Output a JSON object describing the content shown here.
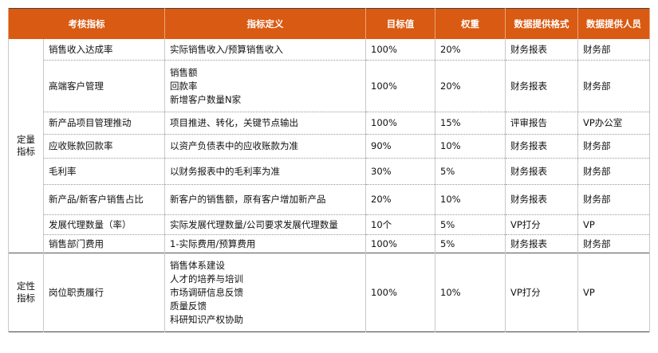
{
  "headers": [
    "考核指标",
    "指标定义",
    "目标值",
    "权重",
    "数据提供格式",
    "数据提供人员"
  ],
  "groups": [
    {
      "label_lines": [
        "定量",
        "指标"
      ],
      "rows": [
        {
          "name": "销售收入达成率",
          "def": [
            "实际销售收入/预算销售收入"
          ],
          "target": "100%",
          "weight": "20%",
          "format": "财务报表",
          "provider": "财务部"
        },
        {
          "name": "高端客户管理",
          "def": [
            "销售额",
            "回款率",
            "新增客户数量N家"
          ],
          "target": "100%",
          "weight": "20%",
          "format": "财务报表",
          "provider": "财务部"
        },
        {
          "name": "新产品项目管理推动",
          "def": [
            "项目推进、转化，关键节点输出"
          ],
          "target": "100%",
          "weight": "15%",
          "format": "评审报告",
          "provider": "VP办公室"
        },
        {
          "name": "应收账款回款率",
          "def": [
            "以资产负债表中的应收账款为准"
          ],
          "target": "90%",
          "weight": "10%",
          "format": "财务报表",
          "provider": "财务部"
        },
        {
          "name": "毛利率",
          "def": [
            "以财务报表中的毛利率为准"
          ],
          "target": "30%",
          "weight": "5%",
          "format": "财务报表",
          "provider": "财务部"
        },
        {
          "name": "新产品/新客户销售占比",
          "def": [
            "新客户的销售额，原有客户增加新产品"
          ],
          "target": "20%",
          "weight": "10%",
          "format": "财务报表",
          "provider": "财务部"
        },
        {
          "name": "发展代理数量（率）",
          "def": [
            "实际发展代理数量/公司要求发展代理数量"
          ],
          "target": "10个",
          "weight": "5%",
          "format": "VP打分",
          "provider": "VP"
        },
        {
          "name": "销售部门费用",
          "def": [
            "1-实际费用/预算费用"
          ],
          "target": "100%",
          "weight": "5%",
          "format": "财务报表",
          "provider": "财务部"
        }
      ]
    },
    {
      "label_lines": [
        "定性",
        "指标"
      ],
      "rows": [
        {
          "name": "岗位职责履行",
          "def": [
            "销售体系建设",
            "人才的培养与培训",
            "市场调研信息反馈",
            "质量反馈",
            "科研知识产权协助"
          ],
          "target": "100%",
          "weight": "10%",
          "format": "VP打分",
          "provider": "VP"
        }
      ]
    }
  ]
}
